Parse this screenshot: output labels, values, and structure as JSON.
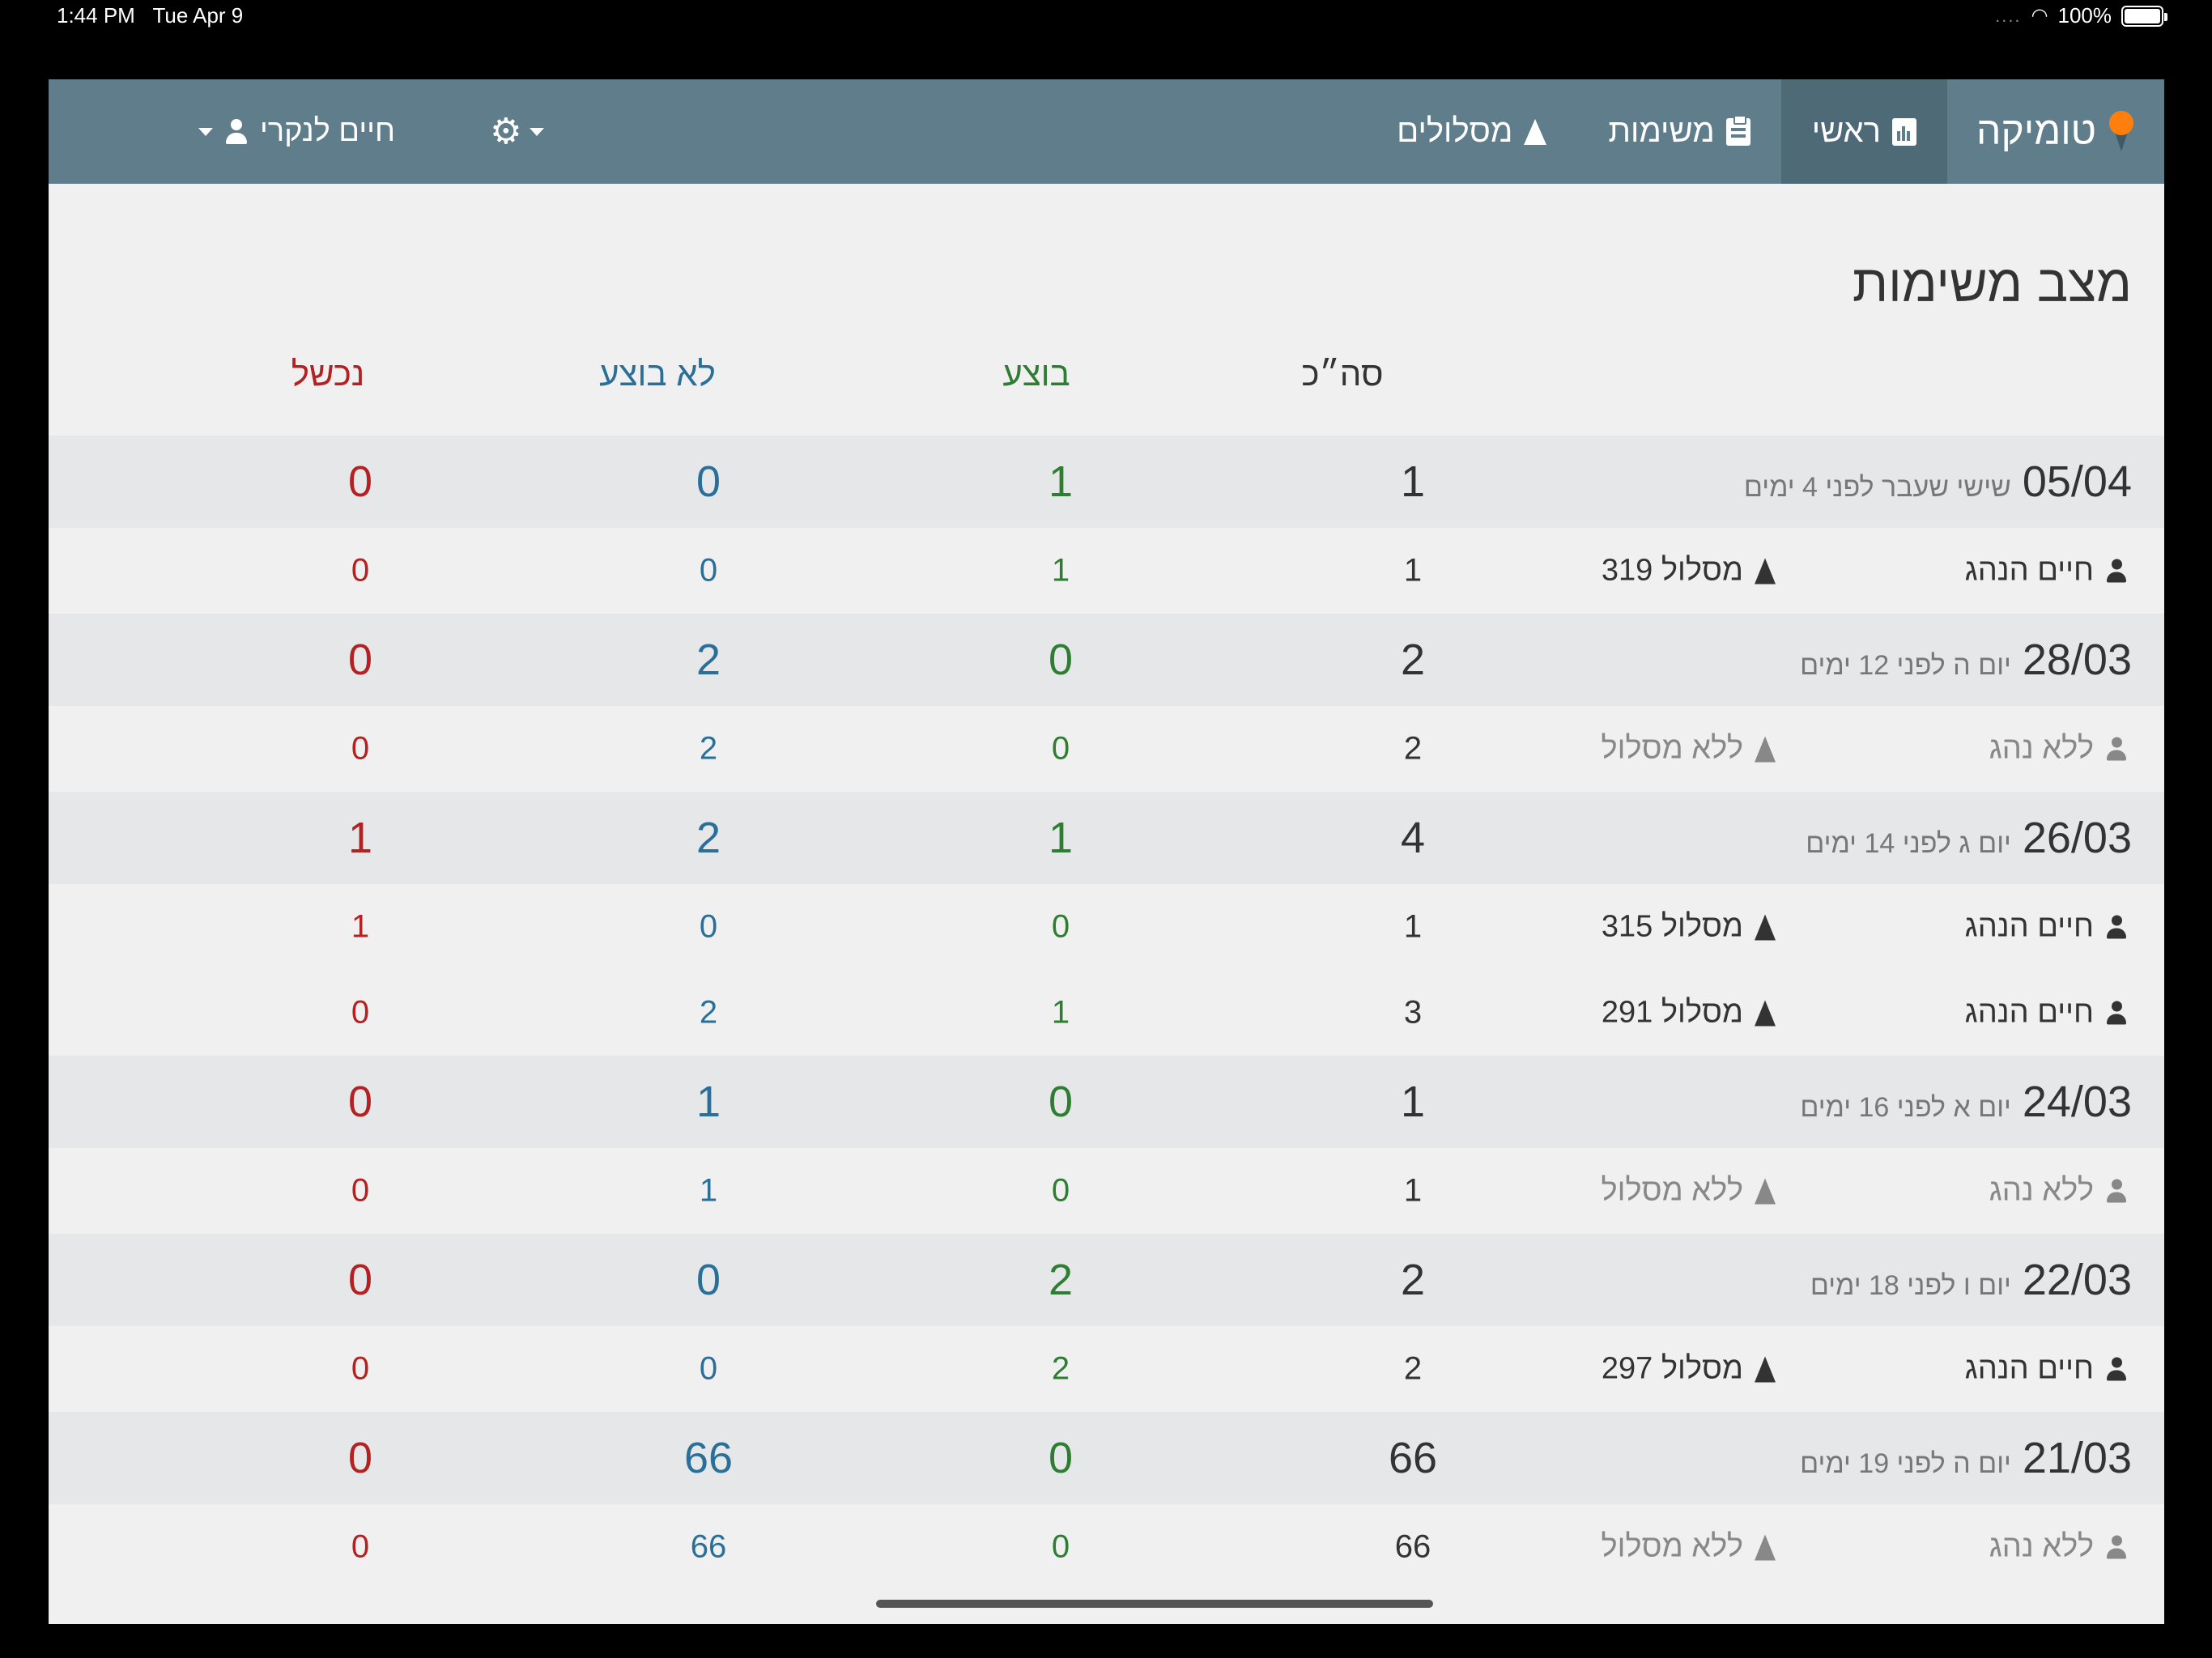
{
  "status_bar": {
    "time": "1:44 PM",
    "date": "Tue Apr 9",
    "dots": "....",
    "battery": "100%"
  },
  "navbar": {
    "brand": "טומיקה",
    "items": [
      {
        "label": "ראשי",
        "active": true
      },
      {
        "label": "משימות"
      },
      {
        "label": "מסלולים"
      }
    ],
    "user": "חיים לנקרי"
  },
  "page": {
    "title": "מצב משימות",
    "columns": {
      "total": "סה״כ",
      "done": "בוצע",
      "not_done": "לא בוצע",
      "failed": "נכשל"
    },
    "groups": [
      {
        "date": "05/04",
        "sub": "שישי שעבר לפני 4 ימים",
        "total": "1",
        "done": "1",
        "not_done": "0",
        "failed": "0",
        "details": [
          {
            "driver": "חיים הנהג",
            "route": "מסלול 319",
            "total": "1",
            "done": "1",
            "not_done": "0",
            "failed": "0",
            "none": false
          }
        ]
      },
      {
        "date": "28/03",
        "sub": "יום ה לפני 12 ימים",
        "total": "2",
        "done": "0",
        "not_done": "2",
        "failed": "0",
        "details": [
          {
            "driver": "ללא נהג",
            "route": "ללא מסלול",
            "total": "2",
            "done": "0",
            "not_done": "2",
            "failed": "0",
            "none": true
          }
        ]
      },
      {
        "date": "26/03",
        "sub": "יום ג לפני 14 ימים",
        "total": "4",
        "done": "1",
        "not_done": "2",
        "failed": "1",
        "details": [
          {
            "driver": "חיים הנהג",
            "route": "מסלול 315",
            "total": "1",
            "done": "0",
            "not_done": "0",
            "failed": "1",
            "none": false
          },
          {
            "driver": "חיים הנהג",
            "route": "מסלול 291",
            "total": "3",
            "done": "1",
            "not_done": "2",
            "failed": "0",
            "none": false
          }
        ]
      },
      {
        "date": "24/03",
        "sub": "יום א לפני 16 ימים",
        "total": "1",
        "done": "0",
        "not_done": "1",
        "failed": "0",
        "details": [
          {
            "driver": "ללא נהג",
            "route": "ללא מסלול",
            "total": "1",
            "done": "0",
            "not_done": "1",
            "failed": "0",
            "none": true
          }
        ]
      },
      {
        "date": "22/03",
        "sub": "יום ו לפני 18 ימים",
        "total": "2",
        "done": "2",
        "not_done": "0",
        "failed": "0",
        "details": [
          {
            "driver": "חיים הנהג",
            "route": "מסלול 297",
            "total": "2",
            "done": "2",
            "not_done": "0",
            "failed": "0",
            "none": false
          }
        ]
      },
      {
        "date": "21/03",
        "sub": "יום ה לפני 19 ימים",
        "total": "66",
        "done": "0",
        "not_done": "66",
        "failed": "0",
        "details": [
          {
            "driver": "ללא נהג",
            "route": "ללא מסלול",
            "total": "66",
            "done": "0",
            "not_done": "66",
            "failed": "0",
            "none": true
          }
        ]
      }
    ]
  },
  "colors": {
    "navbar": "#607d8b",
    "active_tab": "#4e6a77",
    "done": "#2e7d32",
    "not_done": "#2a6f97",
    "failed": "#b22222",
    "brand_pin": "#ff7f0e"
  }
}
